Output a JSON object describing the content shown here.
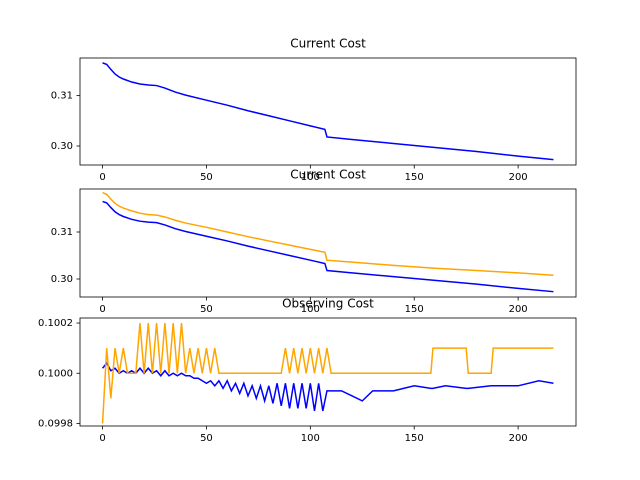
{
  "chart_data": [
    {
      "type": "line",
      "title": "Current Cost",
      "x": [
        0,
        2,
        4,
        6,
        8,
        10,
        14,
        18,
        22,
        26,
        30,
        35,
        40,
        50,
        60,
        70,
        80,
        90,
        100,
        107,
        108,
        120,
        140,
        160,
        180,
        200,
        217
      ],
      "series": [
        {
          "color": "#0000ff",
          "values": [
            0.3165,
            0.3162,
            0.3152,
            0.3143,
            0.3137,
            0.3133,
            0.3127,
            0.3123,
            0.3121,
            0.312,
            0.3115,
            0.3107,
            0.3101,
            0.3091,
            0.3081,
            0.307,
            0.306,
            0.305,
            0.304,
            0.3033,
            0.3018,
            0.3013,
            0.3005,
            0.2997,
            0.2989,
            0.298,
            0.2973
          ]
        }
      ],
      "xlim": [
        -10.85,
        227.85
      ],
      "ylim": [
        0.29623,
        0.31747
      ],
      "xticks": [
        0,
        50,
        100,
        150,
        200
      ],
      "yticks": [
        {
          "value": 0.3,
          "label": "0.30"
        },
        0.31
      ]
    },
    {
      "type": "line",
      "title": "Current Cost",
      "x": [
        0,
        2,
        4,
        6,
        8,
        10,
        14,
        18,
        22,
        26,
        30,
        35,
        40,
        50,
        60,
        70,
        80,
        90,
        100,
        107,
        108,
        120,
        140,
        160,
        180,
        200,
        217
      ],
      "series": [
        {
          "color": "#0000ff",
          "values": [
            0.3165,
            0.3162,
            0.3152,
            0.3143,
            0.3137,
            0.3133,
            0.3127,
            0.3123,
            0.3121,
            0.312,
            0.3115,
            0.3107,
            0.3101,
            0.3091,
            0.3081,
            0.307,
            0.306,
            0.305,
            0.304,
            0.3033,
            0.3018,
            0.3013,
            0.3005,
            0.2997,
            0.2989,
            0.298,
            0.2973
          ]
        },
        {
          "color": "#ffa500",
          "values": [
            0.3184,
            0.318,
            0.317,
            0.3161,
            0.3155,
            0.3151,
            0.3145,
            0.314,
            0.3137,
            0.3136,
            0.3132,
            0.3125,
            0.3119,
            0.311,
            0.31,
            0.309,
            0.3081,
            0.3072,
            0.3063,
            0.3057,
            0.304,
            0.3036,
            0.3029,
            0.3023,
            0.3018,
            0.3013,
            0.3008
          ]
        }
      ],
      "xlim": [
        -10.85,
        227.85
      ],
      "ylim": [
        0.29617,
        0.31915
      ],
      "xticks": [
        0,
        50,
        100,
        150,
        200
      ],
      "yticks": [
        {
          "value": 0.3,
          "label": "0.30"
        },
        0.31
      ]
    },
    {
      "type": "line",
      "title": "Observing Cost",
      "x": [
        0,
        2,
        4,
        6,
        8,
        10,
        12,
        14,
        16,
        18,
        20,
        22,
        24,
        26,
        28,
        30,
        32,
        34,
        36,
        38,
        40,
        42,
        44,
        46,
        48,
        50,
        52,
        54,
        56,
        58,
        60,
        62,
        64,
        66,
        68,
        70,
        72,
        74,
        76,
        78,
        80,
        82,
        84,
        86,
        88,
        90,
        92,
        94,
        96,
        98,
        100,
        102,
        104,
        106,
        108,
        110,
        115,
        120,
        125,
        130,
        140,
        150,
        158,
        159,
        165,
        175,
        176,
        187,
        188,
        200,
        210,
        217
      ],
      "series": [
        {
          "color": "#0000ff",
          "values": [
            0.10002,
            0.10004,
            0.10001,
            0.10002,
            0.1,
            0.10001,
            0.1,
            0.10001,
            0.1,
            0.10002,
            0.1,
            0.10002,
            0.1,
            0.10001,
            0.09999,
            0.10001,
            0.09999,
            0.1,
            0.09999,
            0.1,
            0.09999,
            0.09999,
            0.09998,
            0.09998,
            0.09997,
            0.09996,
            0.09997,
            0.09995,
            0.09997,
            0.09994,
            0.09997,
            0.09993,
            0.09996,
            0.09992,
            0.09996,
            0.09991,
            0.09995,
            0.0999,
            0.09995,
            0.09989,
            0.09995,
            0.09988,
            0.09996,
            0.09987,
            0.09996,
            0.09986,
            0.09996,
            0.09986,
            0.09996,
            0.09986,
            0.09996,
            0.09985,
            0.09996,
            0.09985,
            0.09993,
            0.09993,
            0.09993,
            0.09991,
            0.09989,
            0.09993,
            0.09993,
            0.09995,
            0.09994,
            0.09994,
            0.09995,
            0.09994,
            0.09994,
            0.09995,
            0.09995,
            0.09995,
            0.09997,
            0.09996
          ]
        },
        {
          "color": "#ffa500",
          "values": [
            0.0998,
            0.1001,
            0.0999,
            0.1001,
            0.1,
            0.1001,
            0.1,
            0.1,
            0.1,
            0.1002,
            0.1,
            0.1002,
            0.1,
            0.1002,
            0.1,
            0.1002,
            0.1,
            0.1002,
            0.1,
            0.1002,
            0.1,
            0.1001,
            0.1,
            0.1001,
            0.1,
            0.1001,
            0.1,
            0.1001,
            0.1,
            0.1,
            0.1,
            0.1,
            0.1,
            0.1,
            0.1,
            0.1,
            0.1,
            0.1,
            0.1,
            0.1,
            0.1,
            0.1,
            0.1,
            0.1,
            0.1001,
            0.1,
            0.1001,
            0.1,
            0.1001,
            0.1,
            0.1001,
            0.1,
            0.1001,
            0.1,
            0.1001,
            0.1,
            0.1,
            0.1,
            0.1,
            0.1,
            0.1,
            0.1,
            0.1,
            0.1001,
            0.1001,
            0.1001,
            0.1,
            0.1,
            0.1001,
            0.1001,
            0.1001,
            0.1001
          ]
        }
      ],
      "xlim": [
        -10.85,
        227.85
      ],
      "ylim": [
        0.09979,
        0.10022
      ],
      "xticks": [
        0,
        50,
        100,
        150,
        200
      ],
      "yticks": [
        0.0998,
        {
          "value": 0.1,
          "label": "0.1000"
        },
        0.1002
      ]
    }
  ]
}
